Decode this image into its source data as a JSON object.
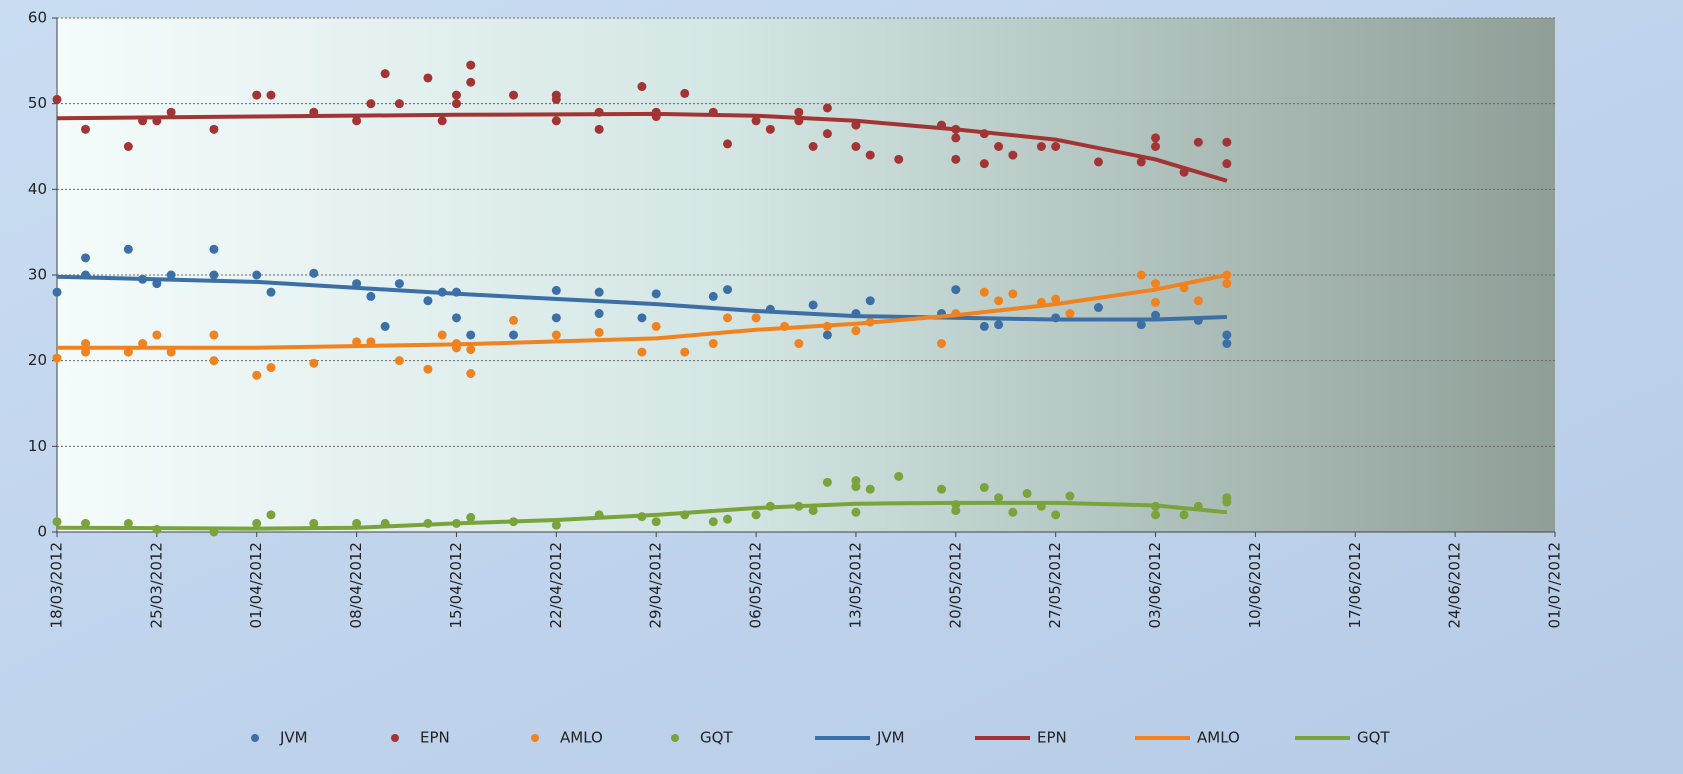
{
  "chart_data": {
    "type": "scatter",
    "xlim": [
      "18/03/2012",
      "01/07/2012"
    ],
    "xticks": [
      "18/03/2012",
      "25/03/2012",
      "01/04/2012",
      "08/04/2012",
      "15/04/2012",
      "22/04/2012",
      "29/04/2012",
      "06/05/2012",
      "13/05/2012",
      "20/05/2012",
      "27/05/2012",
      "03/06/2012",
      "10/06/2012",
      "17/06/2012",
      "24/06/2012",
      "01/07/2012"
    ],
    "ylim": [
      0,
      60
    ],
    "yticks": [
      0,
      10,
      20,
      30,
      40,
      50,
      60
    ],
    "grid": true,
    "series": [
      {
        "name": "JVM",
        "mode": "markers",
        "color": "#3b6fa6",
        "x": [
          "18/03/2012",
          "20/03/2012",
          "20/03/2012",
          "23/03/2012",
          "24/03/2012",
          "25/03/2012",
          "26/03/2012",
          "29/03/2012",
          "29/03/2012",
          "01/04/2012",
          "02/04/2012",
          "05/04/2012",
          "08/04/2012",
          "09/04/2012",
          "10/04/2012",
          "11/04/2012",
          "13/04/2012",
          "14/04/2012",
          "15/04/2012",
          "15/04/2012",
          "16/04/2012",
          "19/04/2012",
          "22/04/2012",
          "22/04/2012",
          "25/04/2012",
          "25/04/2012",
          "28/04/2012",
          "29/04/2012",
          "03/05/2012",
          "04/05/2012",
          "07/05/2012",
          "10/05/2012",
          "11/05/2012",
          "13/05/2012",
          "14/05/2012",
          "19/05/2012",
          "20/05/2012",
          "22/05/2012",
          "23/05/2012",
          "27/05/2012",
          "30/05/2012",
          "02/06/2012",
          "03/06/2012",
          "06/06/2012",
          "08/06/2012",
          "08/06/2012"
        ],
        "values": [
          28,
          32,
          30,
          33,
          29.5,
          29,
          30,
          33,
          30,
          30,
          28,
          30.2,
          29,
          27.5,
          24,
          29,
          27,
          28,
          25,
          28,
          23,
          23,
          28.2,
          25,
          28,
          25.5,
          25,
          27.8,
          27.5,
          28.3,
          26,
          26.5,
          23,
          25.5,
          27,
          25.5,
          28.3,
          24,
          24.2,
          25,
          26.2,
          24.2,
          25.3,
          24.7,
          23,
          22
        ]
      },
      {
        "name": "EPN",
        "mode": "markers",
        "color": "#a33434",
        "x": [
          "18/03/2012",
          "20/03/2012",
          "23/03/2012",
          "24/03/2012",
          "25/03/2012",
          "26/03/2012",
          "29/03/2012",
          "01/04/2012",
          "02/04/2012",
          "05/04/2012",
          "08/04/2012",
          "09/04/2012",
          "10/04/2012",
          "11/04/2012",
          "13/04/2012",
          "14/04/2012",
          "15/04/2012",
          "15/04/2012",
          "16/04/2012",
          "16/04/2012",
          "19/04/2012",
          "22/04/2012",
          "22/04/2012",
          "22/04/2012",
          "25/04/2012",
          "25/04/2012",
          "28/04/2012",
          "29/04/2012",
          "29/04/2012",
          "01/05/2012",
          "03/05/2012",
          "04/05/2012",
          "06/05/2012",
          "07/05/2012",
          "09/05/2012",
          "09/05/2012",
          "10/05/2012",
          "11/05/2012",
          "11/05/2012",
          "13/05/2012",
          "13/05/2012",
          "14/05/2012",
          "16/05/2012",
          "19/05/2012",
          "20/05/2012",
          "20/05/2012",
          "20/05/2012",
          "22/05/2012",
          "22/05/2012",
          "23/05/2012",
          "24/05/2012",
          "26/05/2012",
          "27/05/2012",
          "30/05/2012",
          "02/06/2012",
          "03/06/2012",
          "03/06/2012",
          "05/06/2012",
          "06/06/2012",
          "08/06/2012",
          "08/06/2012"
        ],
        "values": [
          50.5,
          47,
          45,
          48,
          48,
          49,
          47,
          51,
          51,
          49,
          48,
          50,
          53.5,
          50,
          53,
          48,
          51,
          50,
          54.5,
          52.5,
          51,
          51,
          50.5,
          48,
          49,
          47,
          52,
          49,
          48.5,
          51.2,
          49,
          45.3,
          48,
          47,
          49,
          48,
          45,
          49.5,
          46.5,
          47.5,
          45,
          44,
          43.5,
          47.5,
          47,
          46,
          43.5,
          46.5,
          43,
          45,
          44,
          45,
          45,
          43.2,
          43.2,
          46,
          45,
          42,
          45.5,
          45.5,
          43
        ]
      },
      {
        "name": "AMLO",
        "mode": "markers",
        "color": "#f0821f",
        "x": [
          "18/03/2012",
          "20/03/2012",
          "20/03/2012",
          "23/03/2012",
          "24/03/2012",
          "25/03/2012",
          "26/03/2012",
          "29/03/2012",
          "29/03/2012",
          "01/04/2012",
          "02/04/2012",
          "05/04/2012",
          "08/04/2012",
          "09/04/2012",
          "11/04/2012",
          "13/04/2012",
          "14/04/2012",
          "15/04/2012",
          "15/04/2012",
          "16/04/2012",
          "16/04/2012",
          "19/04/2012",
          "22/04/2012",
          "25/04/2012",
          "28/04/2012",
          "29/04/2012",
          "01/05/2012",
          "03/05/2012",
          "04/05/2012",
          "06/05/2012",
          "08/05/2012",
          "09/05/2012",
          "11/05/2012",
          "13/05/2012",
          "14/05/2012",
          "19/05/2012",
          "20/05/2012",
          "22/05/2012",
          "23/05/2012",
          "24/05/2012",
          "26/05/2012",
          "27/05/2012",
          "28/05/2012",
          "02/06/2012",
          "03/06/2012",
          "03/06/2012",
          "05/06/2012",
          "06/06/2012",
          "08/06/2012",
          "08/06/2012"
        ],
        "values": [
          20.3,
          22,
          21,
          21,
          22,
          23,
          21,
          23,
          20,
          18.3,
          19.2,
          19.7,
          22.2,
          22.2,
          20,
          19,
          23,
          22,
          21.5,
          18.5,
          21.3,
          24.7,
          23,
          23.3,
          21,
          24,
          21,
          22,
          25,
          25,
          24,
          22,
          24,
          23.5,
          24.5,
          22,
          25.5,
          28,
          27,
          27.8,
          26.8,
          27.2,
          25.5,
          30,
          29,
          26.8,
          28.5,
          27,
          30,
          29
        ]
      },
      {
        "name": "GQT",
        "mode": "markers",
        "color": "#7aa33b",
        "x": [
          "18/03/2012",
          "20/03/2012",
          "23/03/2012",
          "25/03/2012",
          "29/03/2012",
          "01/04/2012",
          "02/04/2012",
          "05/04/2012",
          "08/04/2012",
          "10/04/2012",
          "13/04/2012",
          "15/04/2012",
          "16/04/2012",
          "19/04/2012",
          "22/04/2012",
          "25/04/2012",
          "28/04/2012",
          "29/04/2012",
          "01/05/2012",
          "03/05/2012",
          "04/05/2012",
          "06/05/2012",
          "07/05/2012",
          "09/05/2012",
          "10/05/2012",
          "11/05/2012",
          "13/05/2012",
          "13/05/2012",
          "13/05/2012",
          "14/05/2012",
          "16/05/2012",
          "19/05/2012",
          "20/05/2012",
          "20/05/2012",
          "22/05/2012",
          "23/05/2012",
          "24/05/2012",
          "25/05/2012",
          "26/05/2012",
          "27/05/2012",
          "28/05/2012",
          "03/06/2012",
          "03/06/2012",
          "05/06/2012",
          "06/06/2012",
          "08/06/2012",
          "08/06/2012"
        ],
        "values": [
          1.2,
          1,
          1,
          0.3,
          0,
          1,
          2,
          1,
          1,
          1,
          1,
          1,
          1.7,
          1.2,
          0.8,
          2,
          1.8,
          1.2,
          2,
          1.2,
          1.5,
          2,
          3,
          3,
          2.5,
          5.8,
          6,
          5.3,
          2.3,
          5,
          6.5,
          5,
          2.5,
          3.2,
          5.2,
          4,
          2.3,
          4.5,
          3,
          2,
          4.2,
          3,
          2,
          2,
          3,
          4,
          3.5
        ]
      },
      {
        "name": "JVM",
        "mode": "line",
        "color": "#3b6fa6",
        "x": [
          "18/03/2012",
          "01/04/2012",
          "15/04/2012",
          "29/04/2012",
          "06/05/2012",
          "13/05/2012",
          "20/05/2012",
          "27/05/2012",
          "03/06/2012",
          "08/06/2012"
        ],
        "values": [
          29.8,
          29.2,
          27.8,
          26.6,
          25.8,
          25.2,
          25,
          24.8,
          24.8,
          25.1
        ]
      },
      {
        "name": "EPN",
        "mode": "line",
        "color": "#a33434",
        "x": [
          "18/03/2012",
          "01/04/2012",
          "15/04/2012",
          "29/04/2012",
          "06/05/2012",
          "13/05/2012",
          "20/05/2012",
          "27/05/2012",
          "03/06/2012",
          "08/06/2012"
        ],
        "values": [
          48.3,
          48.5,
          48.7,
          48.8,
          48.6,
          48,
          47,
          45.8,
          43.5,
          41
        ]
      },
      {
        "name": "AMLO",
        "mode": "line",
        "color": "#f0821f",
        "x": [
          "18/03/2012",
          "01/04/2012",
          "15/04/2012",
          "29/04/2012",
          "06/05/2012",
          "13/05/2012",
          "20/05/2012",
          "27/05/2012",
          "03/06/2012",
          "08/06/2012"
        ],
        "values": [
          21.5,
          21.5,
          21.9,
          22.6,
          23.6,
          24.3,
          25.3,
          26.6,
          28.3,
          30
        ]
      },
      {
        "name": "GQT",
        "mode": "line",
        "color": "#7aa33b",
        "x": [
          "18/03/2012",
          "01/04/2012",
          "08/04/2012",
          "15/04/2012",
          "22/04/2012",
          "29/04/2012",
          "06/05/2012",
          "13/05/2012",
          "20/05/2012",
          "27/05/2012",
          "03/06/2012",
          "08/06/2012"
        ],
        "values": [
          0.5,
          0.4,
          0.5,
          1.0,
          1.4,
          2.0,
          2.8,
          3.3,
          3.4,
          3.4,
          3.1,
          2.3
        ]
      }
    ]
  }
}
